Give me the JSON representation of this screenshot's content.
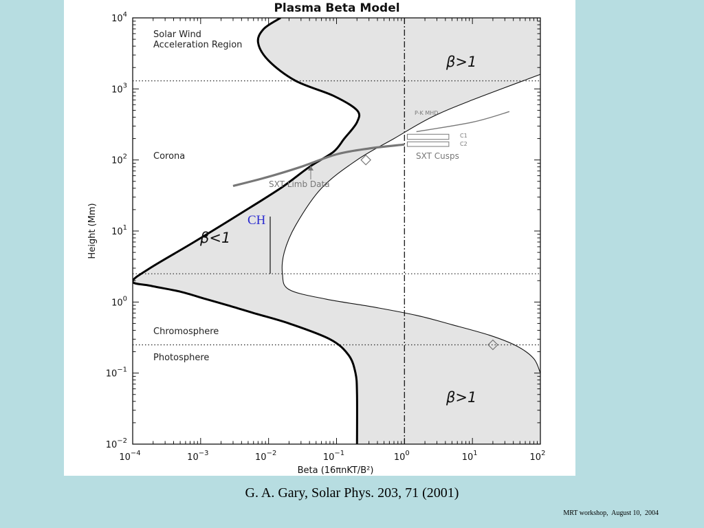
{
  "slide": {
    "caption": "G. A. Gary, Solar Phys. 203, 71 (2001)",
    "footer": "MRT workshop,  August 10,  2004",
    "background_color": "#b7dde1"
  },
  "chart_data": {
    "type": "line",
    "title": "Plasma Beta Model",
    "xlabel": "Beta (16πnKT/B²)",
    "ylabel": "Height (Mm)",
    "x_scale": "log",
    "y_scale": "log",
    "xlim": [
      0.0001,
      100
    ],
    "ylim": [
      0.01,
      10000
    ],
    "x_ticks": [
      {
        "base": "10",
        "exp": "−4"
      },
      {
        "base": "10",
        "exp": "−3"
      },
      {
        "base": "10",
        "exp": "−2"
      },
      {
        "base": "10",
        "exp": "−1"
      },
      {
        "base": "10",
        "exp": "0"
      },
      {
        "base": "10",
        "exp": "1"
      },
      {
        "base": "10",
        "exp": "2"
      }
    ],
    "y_ticks": [
      {
        "base": "10",
        "exp": "−2"
      },
      {
        "base": "10",
        "exp": "−1"
      },
      {
        "base": "10",
        "exp": "0"
      },
      {
        "base": "10",
        "exp": "1"
      },
      {
        "base": "10",
        "exp": "2"
      },
      {
        "base": "10",
        "exp": "3"
      },
      {
        "base": "10",
        "exp": "4"
      }
    ],
    "regions": {
      "solar_wind_line1": "Solar Wind",
      "solar_wind_line2": "Acceleration Region",
      "corona": "Corona",
      "chromosphere": "Chromosphere",
      "photosphere": "Photosphere"
    },
    "region_boundaries_height": [
      1300,
      2.5,
      0.25
    ],
    "beta_one_line_x": 1,
    "annotations": {
      "beta_gt_1_top": "β>1",
      "beta_gt_1_bottom": "β>1",
      "beta_lt_1": "β<1",
      "sxt_limb": "SXT Limb Data",
      "pk_mhd": "P-K MHD",
      "c1": "C1",
      "c2": "C2",
      "sxt_cusps": "SXT Cusps",
      "ch": "CH"
    },
    "series": [
      {
        "role": "lower_beta_bound",
        "x": [
          0.2,
          0.2,
          0.19,
          0.15,
          0.08,
          0.02,
          0.006,
          0.0025,
          0.0012,
          0.0005,
          0.00018,
          0.0001,
          0.00018,
          0.0008,
          0.004,
          0.015,
          0.04,
          0.09,
          0.13,
          0.2,
          0.2,
          0.09,
          0.025,
          0.01,
          0.007,
          0.0085,
          0.015
        ],
        "y": [
          0.01,
          0.05,
          0.1,
          0.18,
          0.3,
          0.5,
          0.7,
          0.9,
          1.1,
          1.4,
          1.7,
          1.95,
          3,
          7,
          18,
          40,
          80,
          130,
          200,
          340,
          500,
          800,
          1300,
          2500,
          4500,
          7000,
          10000
        ]
      },
      {
        "role": "upper_beta_bound",
        "x": [
          100,
          80,
          45,
          18,
          5,
          1.5,
          0.35,
          0.07,
          0.02,
          0.016,
          0.017,
          0.025,
          0.06,
          0.2,
          0.7,
          2.5,
          10,
          100
        ],
        "y": [
          0.1,
          0.16,
          0.24,
          0.34,
          0.48,
          0.65,
          0.85,
          1.1,
          1.5,
          2.5,
          5,
          12,
          40,
          100,
          200,
          400,
          700,
          1600
        ]
      },
      {
        "role": "sxt_limb_data",
        "x": [
          0.003,
          0.01,
          0.03,
          0.1,
          0.3,
          1
        ],
        "y": [
          43,
          58,
          80,
          120,
          145,
          165
        ]
      },
      {
        "role": "pk_mhd",
        "x": [
          1.5,
          10,
          35
        ],
        "y": [
          250,
          340,
          480
        ]
      }
    ],
    "markers": [
      {
        "x": 0.27,
        "y": 100,
        "shape": "diamond"
      },
      {
        "x": 20,
        "y": 0.25,
        "shape": "diamond"
      }
    ],
    "cusp_boxes": [
      {
        "name": "C1",
        "x_range": [
          1.1,
          4.5
        ],
        "y_range": [
          195,
          230
        ]
      },
      {
        "name": "C2",
        "x_range": [
          1.1,
          4.5
        ],
        "y_range": [
          155,
          180
        ]
      }
    ],
    "grid": false,
    "fill_color": "#e4e4e4"
  }
}
